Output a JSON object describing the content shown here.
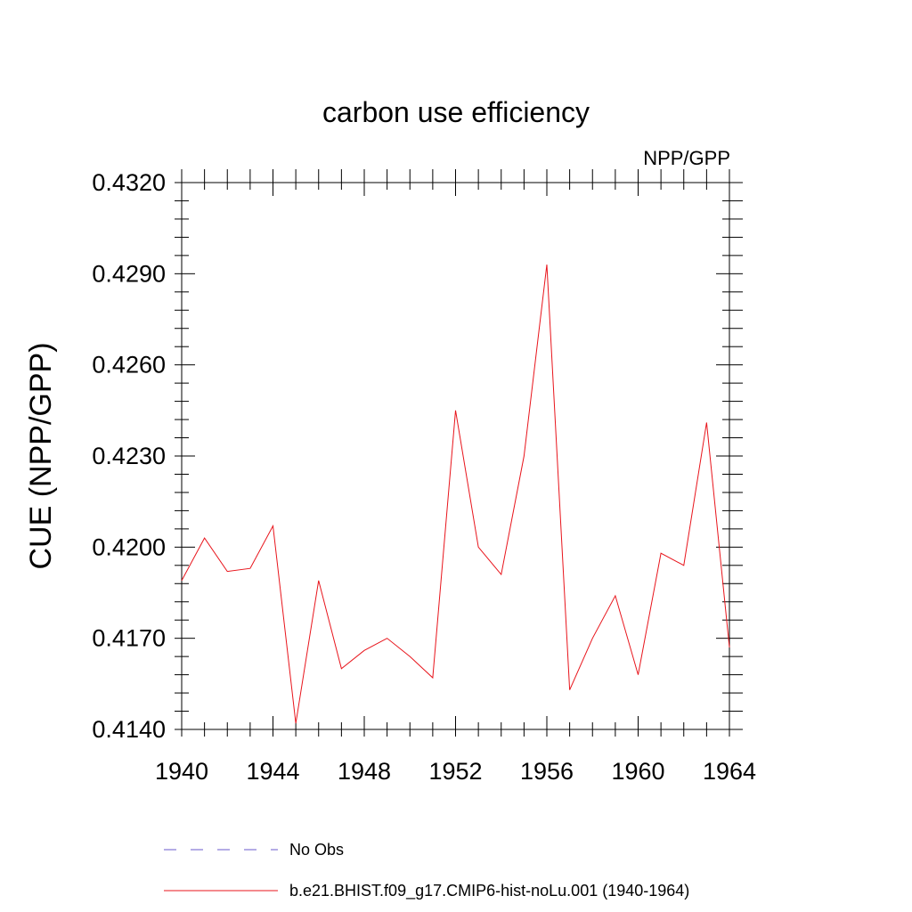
{
  "chart_data": {
    "type": "line",
    "title": "carbon use efficiency",
    "subtitle": "NPP/GPP",
    "ylabel": "CUE  (NPP/GPP)",
    "xlabel": "",
    "xlim": [
      1940,
      1964
    ],
    "ylim": [
      0.414,
      0.432
    ],
    "x_ticks": [
      1940,
      1944,
      1948,
      1952,
      1956,
      1960,
      1964
    ],
    "x_tick_labels": [
      "1940",
      "1944",
      "1948",
      "1952",
      "1956",
      "1960",
      "1964"
    ],
    "y_ticks": [
      0.414,
      0.417,
      0.42,
      0.423,
      0.426,
      0.429,
      0.432
    ],
    "y_tick_labels": [
      "0.4140",
      "0.4170",
      "0.4200",
      "0.4230",
      "0.4260",
      "0.4290",
      "0.4320"
    ],
    "grid": false,
    "legend_position": "bottom",
    "series": [
      {
        "name": "b.e21.BHIST.f09_g17.CMIP6-hist-noLu.001 (1940-1964)",
        "color": "#e8141b",
        "style": "solid",
        "x": [
          1940,
          1941,
          1942,
          1943,
          1944,
          1945,
          1946,
          1947,
          1948,
          1949,
          1950,
          1951,
          1952,
          1953,
          1954,
          1955,
          1956,
          1957,
          1958,
          1959,
          1960,
          1961,
          1962,
          1963,
          1964
        ],
        "y": [
          0.4189,
          0.4203,
          0.4192,
          0.4193,
          0.4207,
          0.4142,
          0.4189,
          0.416,
          0.4166,
          0.417,
          0.4164,
          0.4157,
          0.4245,
          0.42,
          0.4191,
          0.423,
          0.4293,
          0.4153,
          0.417,
          0.4184,
          0.4158,
          0.4198,
          0.4194,
          0.4241,
          0.4167
        ]
      },
      {
        "name": "No Obs",
        "color": "#6a5acd",
        "style": "dashed",
        "x": [],
        "y": []
      }
    ]
  }
}
